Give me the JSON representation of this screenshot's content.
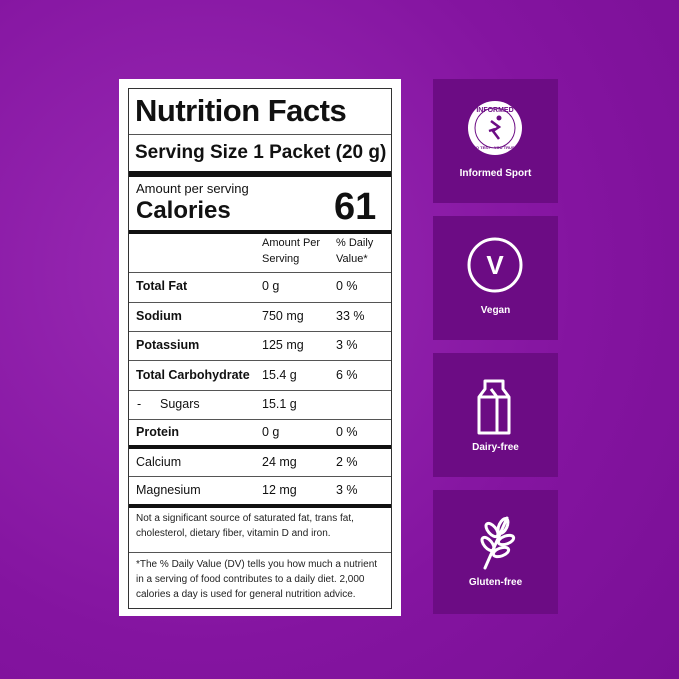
{
  "label": {
    "title": "Nutrition Facts",
    "serving": "Serving Size 1 Packet (20 g)",
    "amount_per_serving": "Amount per serving",
    "calories_label": "Calories",
    "calories": "61",
    "column_headers": [
      "Amount Per",
      "Serving",
      "% Daily",
      "Value*"
    ],
    "rows": [
      {
        "name": "Total Fat",
        "amount": "0 g",
        "dv": "0 %",
        "bold": true
      },
      {
        "name": "Sodium",
        "amount": "750 mg",
        "dv": "33 %",
        "bold": true
      },
      {
        "name": "Potassium",
        "amount": "125 mg",
        "dv": "3 %",
        "bold": true
      },
      {
        "name": "Total Carbohydrate",
        "amount": "15.4 g",
        "dv": "6 %",
        "bold": true
      },
      {
        "prefix": "-",
        "name": "Sugars",
        "amount": "15.1 g",
        "bold": false
      },
      {
        "name": "Protein",
        "amount": "0 g",
        "dv": "0 %",
        "bold": true
      },
      {
        "name": "Calcium",
        "amount": "24 mg",
        "dv": "2 %",
        "bold": false
      },
      {
        "name": "Magnesium",
        "amount": "12 mg",
        "dv": "3 %",
        "bold": false
      }
    ],
    "footnote_1": [
      "Not a significant source of saturated fat, trans fat,",
      "cholesterol, dietary fiber, vitamin D and iron."
    ],
    "footnote_2": [
      "*The % Daily Value (DV) tells you how much a nutrient",
      "in a serving of food contributes to a daily diet. 2,000",
      "calories a day is used for general nutrition advice."
    ]
  },
  "badges": [
    {
      "label": "Informed Sport",
      "logo_text": "INFORMED",
      "logo_subtext": "NO TEST · YOU TRUST"
    },
    {
      "label": "Vegan",
      "logo_text": "V"
    },
    {
      "label": "Dairy-free"
    },
    {
      "label": "Gluten-free"
    }
  ]
}
